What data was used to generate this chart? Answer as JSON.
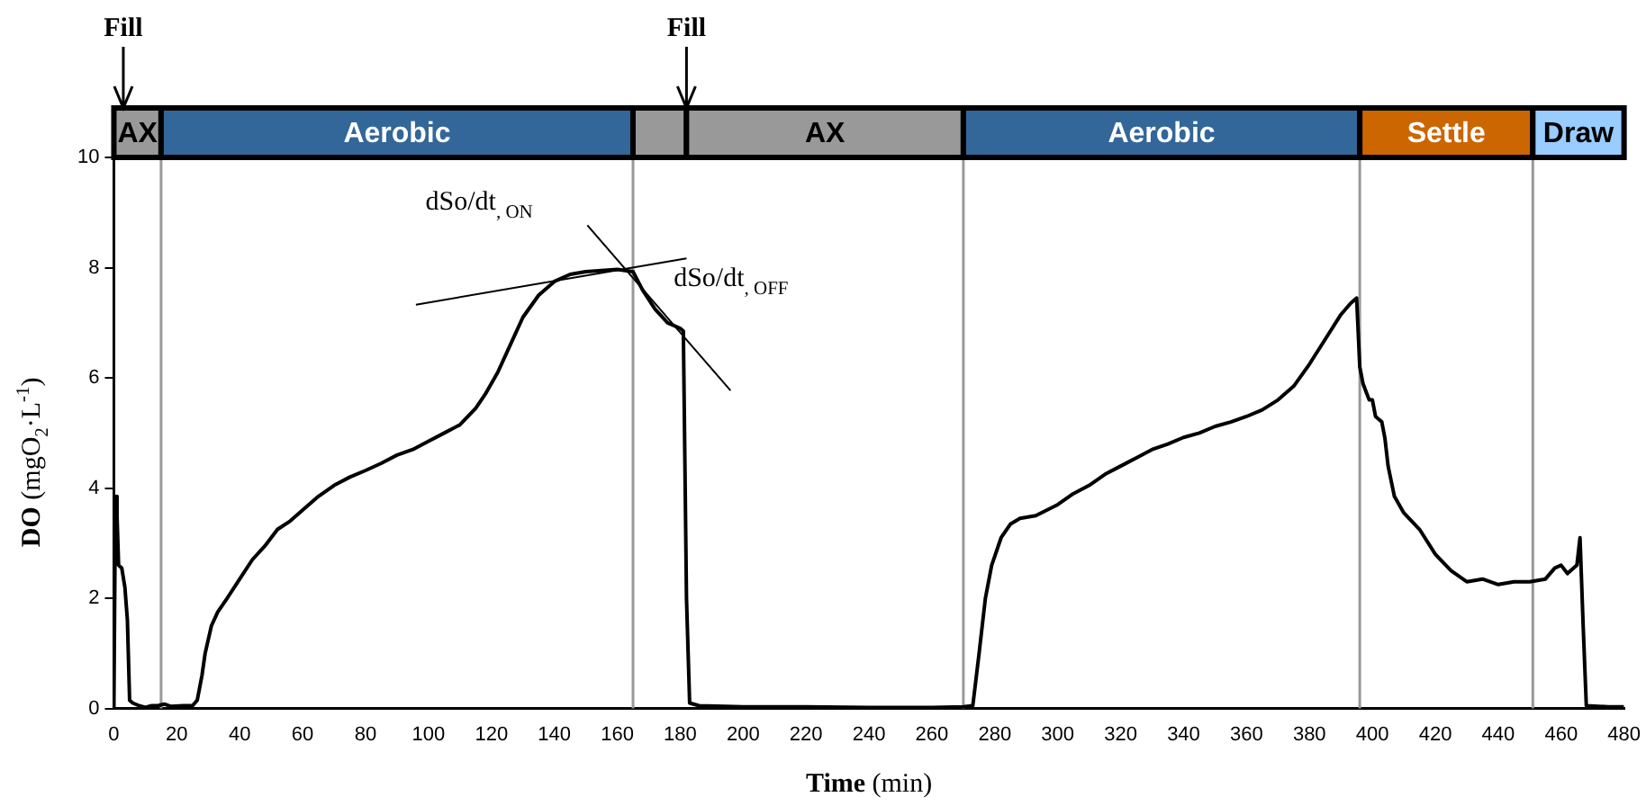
{
  "chart_data": {
    "type": "line",
    "xlabel": "Time (min)",
    "ylabel": "DO (mgO$_{2}$·L$^{-1}$)",
    "xlim": [
      0,
      480
    ],
    "xticks": [
      0,
      20,
      40,
      60,
      80,
      100,
      120,
      140,
      160,
      180,
      200,
      220,
      240,
      260,
      280,
      300,
      320,
      340,
      360,
      380,
      400,
      420,
      440,
      460,
      480
    ],
    "ylim": [
      0,
      10.9
    ],
    "yticks": [
      0,
      2,
      4,
      6,
      8,
      10
    ],
    "grid": false,
    "legend": false,
    "marker": "none",
    "line_style": "solid",
    "series": [
      {
        "color": "#000000",
        "x": [
          0,
          0.5,
          1,
          1.5,
          2.5,
          3.5,
          4.3,
          5,
          6,
          8,
          10,
          12,
          14,
          16,
          18,
          22,
          25,
          26.5,
          28,
          29,
          31,
          33,
          36,
          40,
          44,
          48,
          52,
          56,
          60,
          65,
          70,
          75,
          80,
          85,
          90,
          95,
          100,
          105,
          110,
          115,
          118,
          122,
          126,
          130,
          135,
          140,
          145,
          150,
          155,
          160,
          165,
          168,
          172,
          176,
          180,
          181,
          182,
          183,
          186,
          200,
          220,
          240,
          260,
          270,
          273,
          275,
          277,
          279,
          282,
          285,
          288,
          293,
          300,
          305,
          310,
          315,
          320,
          325,
          330,
          335,
          340,
          345,
          350,
          355,
          360,
          365,
          370,
          375,
          380,
          385,
          390,
          393,
          395,
          396,
          397,
          398,
          399,
          400,
          401,
          403,
          404,
          405,
          407,
          410,
          415,
          420,
          425,
          430,
          435,
          440,
          445,
          450,
          455,
          458,
          460,
          462,
          465,
          466,
          467,
          468,
          475,
          480
        ],
        "values": [
          0,
          3.85,
          3.5,
          2.6,
          2.55,
          2.2,
          1.6,
          0.15,
          0.1,
          0.05,
          0.02,
          0.05,
          0.05,
          0.08,
          0.04,
          0.05,
          0.05,
          0.15,
          0.6,
          1.0,
          1.5,
          1.75,
          2.0,
          2.35,
          2.7,
          2.95,
          3.25,
          3.4,
          3.6,
          3.85,
          4.05,
          4.2,
          4.32,
          4.45,
          4.6,
          4.7,
          4.85,
          5.0,
          5.15,
          5.45,
          5.7,
          6.1,
          6.6,
          7.1,
          7.5,
          7.75,
          7.88,
          7.93,
          7.95,
          7.97,
          7.93,
          7.6,
          7.25,
          7.0,
          6.9,
          6.85,
          2.0,
          0.1,
          0.05,
          0.03,
          0.03,
          0.02,
          0.02,
          0.03,
          0.05,
          1.0,
          2.0,
          2.6,
          3.1,
          3.35,
          3.45,
          3.5,
          3.7,
          3.9,
          4.05,
          4.25,
          4.4,
          4.55,
          4.7,
          4.8,
          4.92,
          5.0,
          5.12,
          5.2,
          5.3,
          5.42,
          5.6,
          5.85,
          6.25,
          6.7,
          7.15,
          7.35,
          7.45,
          6.2,
          5.9,
          5.75,
          5.6,
          5.6,
          5.3,
          5.2,
          4.9,
          4.4,
          3.85,
          3.55,
          3.25,
          2.8,
          2.5,
          2.3,
          2.35,
          2.25,
          2.3,
          2.3,
          2.35,
          2.55,
          2.6,
          2.45,
          2.6,
          3.1,
          1.5,
          0.05,
          0.03,
          0.03
        ]
      },
      {
        "type": "line",
        "color": "#000000",
        "x": [
          96,
          182
        ],
        "values": [
          7.33,
          8.17
        ]
      },
      {
        "type": "line",
        "color": "#000000",
        "x": [
          150.5,
          196
        ],
        "values": [
          8.77,
          5.77
        ]
      }
    ],
    "ref_lines": [
      {
        "axis": "x",
        "value": 15,
        "color": "#999999"
      },
      {
        "axis": "x",
        "value": 165,
        "color": "#999999"
      },
      {
        "axis": "x",
        "value": 270,
        "color": "#999999"
      },
      {
        "axis": "x",
        "value": 396,
        "color": "#999999"
      },
      {
        "axis": "x",
        "value": 451,
        "color": "#999999"
      }
    ],
    "bands": [
      {
        "axis": "x",
        "from": 0,
        "to": 15,
        "label": "AX",
        "color": "#999999"
      },
      {
        "axis": "x",
        "from": 15,
        "to": 165,
        "label": "Aerobic",
        "color": "#336699"
      },
      {
        "axis": "x",
        "from": 165,
        "to": 182,
        "color": "#999999"
      },
      {
        "axis": "x",
        "from": 182,
        "to": 270,
        "label": "AX",
        "color": "#999999"
      },
      {
        "axis": "x",
        "from": 270,
        "to": 396,
        "label": "Aerobic",
        "color": "#336699"
      },
      {
        "axis": "x",
        "from": 396,
        "to": 451,
        "label": "Settle",
        "color": "#cc6600"
      },
      {
        "axis": "x",
        "from": 451,
        "to": 480,
        "label": "Draw",
        "color": "#99ccff"
      }
    ],
    "annotations": [
      {
        "text": "Fill",
        "x": 3,
        "y": 10.9
      },
      {
        "text": "Fill",
        "x": 182,
        "y": 10.9
      },
      "dSo/dt$_{, ON}$",
      "dSo/dt$_{, OFF}$"
    ]
  }
}
